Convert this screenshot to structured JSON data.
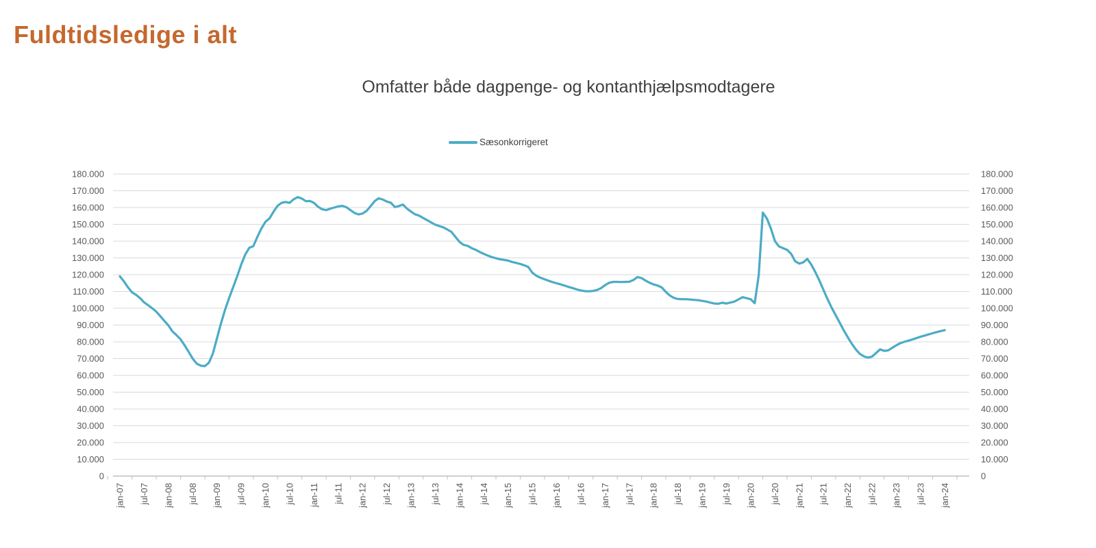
{
  "header": {
    "title": "Fuldtidsledige i alt"
  },
  "colors": {
    "title": "#C5682E",
    "subtitle_text": "#404040",
    "axis_text": "#595959",
    "gridline": "#D9D9D9",
    "axis_line": "#BFBFBF",
    "line": "#4BACC6",
    "background": "#FFFFFF"
  },
  "chart_data": {
    "type": "line",
    "title": "Omfatter både dagpenge- og kontanthjælpsmodtagere",
    "legend_position": "top-center",
    "grid": "horizontal",
    "ylim": [
      0,
      180000
    ],
    "y_tick_step": 10000,
    "y_axis_sides": "both",
    "x_start": "jan-07",
    "x_end": "jan-24",
    "frequency": "monthly",
    "x_tick_labels": [
      "jan-07",
      "jul-07",
      "jan-08",
      "jul-08",
      "jan-09",
      "jul-09",
      "jan-10",
      "jul-10",
      "jan-11",
      "jul-11",
      "jan-12",
      "jul-12",
      "jan-13",
      "jul-13",
      "jan-14",
      "jul-14",
      "jan-15",
      "jul-15",
      "jan-16",
      "jul-16",
      "jan-17",
      "jul-17",
      "jan-18",
      "jul-18",
      "jan-19",
      "jul-19",
      "jan-20",
      "jul-20",
      "jan-21",
      "jul-21",
      "jan-22",
      "jul-22",
      "jan-23",
      "jul-23",
      "jan-24"
    ],
    "y_tick_labels_top_to_bottom": [
      "180.000",
      "170.000",
      "160.000",
      "150.000",
      "140.000",
      "130.000",
      "120.000",
      "110.000",
      "100.000",
      "90.000",
      "80.000",
      "70.000",
      "60.000",
      "50.000",
      "40.000",
      "30.000",
      "20.000",
      "10.000",
      "0"
    ],
    "series": [
      {
        "name": "Sæsonkorrigeret",
        "color": "#4BACC6",
        "values": [
          119000,
          116000,
          112500,
          109500,
          108000,
          106000,
          103500,
          101800,
          100000,
          98000,
          95300,
          92500,
          89800,
          86200,
          84000,
          81500,
          78000,
          74000,
          70000,
          67000,
          65800,
          65500,
          67500,
          73000,
          82000,
          91000,
          99000,
          106000,
          112500,
          119000,
          126000,
          132000,
          136000,
          137000,
          142500,
          147500,
          151500,
          153500,
          157500,
          161000,
          162800,
          163300,
          162800,
          165000,
          166200,
          165400,
          163800,
          163900,
          162800,
          160500,
          159000,
          158500,
          159300,
          160000,
          160700,
          161000,
          160200,
          158500,
          156800,
          155900,
          156400,
          158000,
          160800,
          163800,
          165500,
          164800,
          163600,
          162900,
          160300,
          160900,
          161800,
          159400,
          157600,
          156000,
          155200,
          153800,
          152500,
          151100,
          149800,
          149000,
          148200,
          146900,
          145500,
          142500,
          139500,
          137800,
          137200,
          135800,
          134800,
          133500,
          132400,
          131400,
          130500,
          129800,
          129200,
          128800,
          128400,
          127600,
          127000,
          126400,
          125600,
          124600,
          121200,
          119400,
          118200,
          117300,
          116400,
          115600,
          114900,
          114200,
          113500,
          112700,
          112000,
          111200,
          110600,
          110200,
          110100,
          110300,
          110900,
          112000,
          113800,
          115200,
          115700,
          115700,
          115600,
          115700,
          115800,
          116800,
          118600,
          118000,
          116500,
          115200,
          114200,
          113500,
          112400,
          109800,
          107600,
          106200,
          105500,
          105400,
          105400,
          105200,
          105000,
          104800,
          104400,
          104000,
          103400,
          102800,
          102700,
          103300,
          102800,
          103400,
          104000,
          105300,
          106600,
          106000,
          105400,
          103000,
          120000,
          157000,
          153500,
          147500,
          140000,
          136800,
          135800,
          134800,
          132500,
          128000,
          126600,
          127300,
          129400,
          126000,
          121500,
          116500,
          111000,
          105500,
          100500,
          96000,
          91500,
          87000,
          82800,
          78900,
          75500,
          72800,
          71300,
          70600,
          71200,
          73300,
          75500,
          74600,
          74900,
          76400,
          77900,
          79200,
          80000,
          80700,
          81400,
          82200,
          83000,
          83700,
          84400,
          85100,
          85800,
          86400,
          87000
        ]
      }
    ]
  }
}
